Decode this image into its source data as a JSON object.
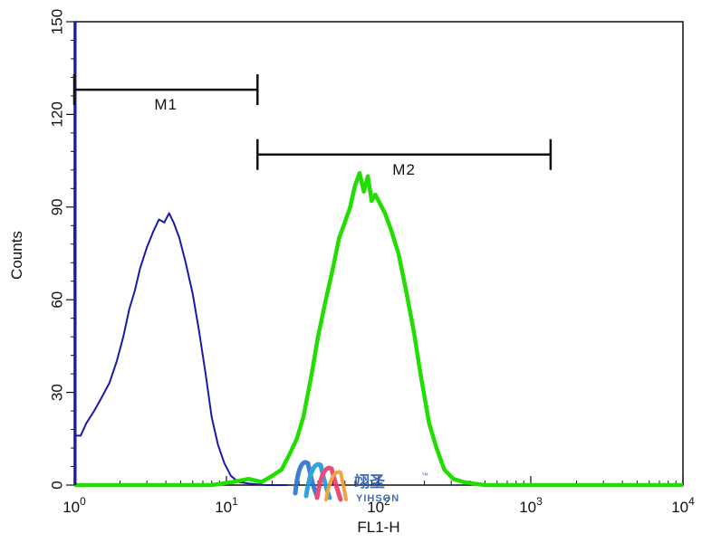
{
  "chart_data": {
    "type": "line",
    "title": "",
    "xlabel": "FL1-H",
    "ylabel": "Counts",
    "xscale": "log",
    "xlim": [
      1,
      10000
    ],
    "ylim": [
      0,
      150
    ],
    "x_ticks": [
      {
        "base": "10",
        "exp": "0",
        "value": 1
      },
      {
        "base": "10",
        "exp": "1",
        "value": 10
      },
      {
        "base": "10",
        "exp": "2",
        "value": 100
      },
      {
        "base": "10",
        "exp": "3",
        "value": 1000
      },
      {
        "base": "10",
        "exp": "4",
        "value": 10000
      }
    ],
    "y_ticks": [
      "0",
      "30",
      "60",
      "90",
      "120",
      "150"
    ],
    "grid": false,
    "markers": [
      {
        "label": "M1",
        "x_start": 1,
        "x_end": 16,
        "y": 128
      },
      {
        "label": "M2",
        "x_start": 16,
        "x_end": 1350,
        "y": 107
      }
    ],
    "series": [
      {
        "color": "#1a1aa8",
        "points": [
          [
            1.0,
            84
          ],
          [
            1.02,
            16
          ],
          [
            1.1,
            16
          ],
          [
            1.2,
            20
          ],
          [
            1.35,
            24
          ],
          [
            1.5,
            28
          ],
          [
            1.7,
            33
          ],
          [
            1.9,
            40
          ],
          [
            2.1,
            48
          ],
          [
            2.3,
            57
          ],
          [
            2.5,
            63
          ],
          [
            2.7,
            70
          ],
          [
            3.0,
            77
          ],
          [
            3.3,
            82
          ],
          [
            3.6,
            86
          ],
          [
            3.9,
            85
          ],
          [
            4.2,
            88
          ],
          [
            4.5,
            85
          ],
          [
            4.9,
            80
          ],
          [
            5.4,
            72
          ],
          [
            6.0,
            62
          ],
          [
            6.6,
            50
          ],
          [
            7.3,
            36
          ],
          [
            8.0,
            22
          ],
          [
            8.8,
            13
          ],
          [
            9.7,
            7
          ],
          [
            10.7,
            3
          ],
          [
            12,
            1
          ],
          [
            14,
            0.5
          ],
          [
            18,
            0
          ],
          [
            25,
            0
          ]
        ]
      },
      {
        "color": "#22dd00",
        "points": [
          [
            1.0,
            0
          ],
          [
            8,
            0
          ],
          [
            11,
            1
          ],
          [
            14,
            2
          ],
          [
            17,
            1
          ],
          [
            20,
            3
          ],
          [
            23,
            5
          ],
          [
            26,
            10
          ],
          [
            29,
            15
          ],
          [
            32,
            22
          ],
          [
            36,
            35
          ],
          [
            40,
            48
          ],
          [
            45,
            60
          ],
          [
            50,
            70
          ],
          [
            55,
            80
          ],
          [
            60,
            85
          ],
          [
            65,
            90
          ],
          [
            70,
            97
          ],
          [
            75,
            101
          ],
          [
            80,
            95
          ],
          [
            85,
            100
          ],
          [
            90,
            92
          ],
          [
            95,
            94
          ],
          [
            100,
            92
          ],
          [
            110,
            88
          ],
          [
            120,
            83
          ],
          [
            135,
            75
          ],
          [
            150,
            64
          ],
          [
            170,
            50
          ],
          [
            190,
            35
          ],
          [
            215,
            20
          ],
          [
            240,
            12
          ],
          [
            270,
            5
          ],
          [
            310,
            2
          ],
          [
            360,
            1
          ],
          [
            420,
            0.5
          ],
          [
            500,
            0
          ],
          [
            10000,
            0
          ]
        ]
      }
    ]
  },
  "watermark": {
    "cn": "翊圣",
    "en": "YIHSON",
    "tm": "™"
  }
}
